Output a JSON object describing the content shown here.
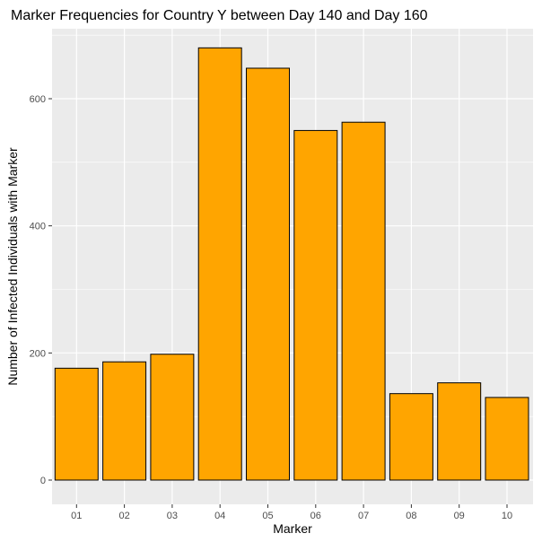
{
  "chart_data": {
    "type": "bar",
    "title": "Marker Frequencies for Country Y between Day 140 and Day 160",
    "xlabel": "Marker",
    "ylabel": "Number of Infected Individuals with Marker",
    "categories": [
      "01",
      "02",
      "03",
      "04",
      "05",
      "06",
      "07",
      "08",
      "09",
      "10"
    ],
    "values": [
      176,
      186,
      198,
      680,
      648,
      550,
      563,
      136,
      153,
      130
    ],
    "ylim": [
      0,
      700
    ],
    "yticks": [
      0,
      200,
      400,
      600
    ],
    "grid": true,
    "bar_fill": "#FFA500",
    "bar_stroke": "#000000",
    "panel_background": "#EBEBEB",
    "grid_color": "#FFFFFF"
  }
}
